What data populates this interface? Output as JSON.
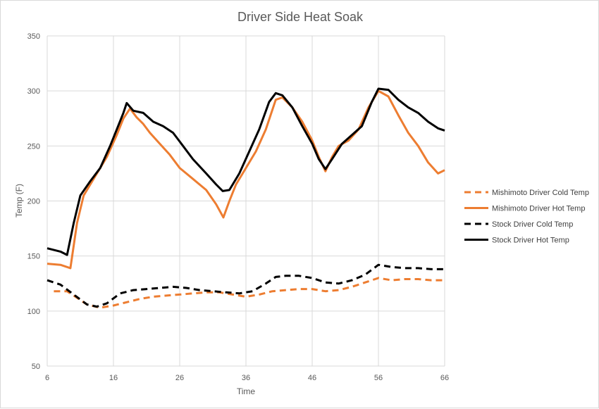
{
  "chart_data": {
    "type": "line",
    "title": "Driver Side Heat Soak",
    "xlabel": "Time",
    "ylabel": "Temp (F)",
    "xlim": [
      6,
      66
    ],
    "ylim": [
      50,
      350
    ],
    "xticks": [
      6,
      16,
      26,
      36,
      46,
      56,
      66
    ],
    "yticks": [
      50,
      100,
      150,
      200,
      250,
      300,
      350
    ],
    "grid": true,
    "legend_position": "right",
    "series": [
      {
        "name": "Mishimoto Driver Cold Temp",
        "color": "#ED7D31",
        "dash": "dashed",
        "points": [
          [
            7,
            118
          ],
          [
            9,
            118
          ],
          [
            10,
            114
          ],
          [
            12,
            106
          ],
          [
            14,
            103
          ],
          [
            16,
            105
          ],
          [
            18,
            108
          ],
          [
            20,
            111
          ],
          [
            22,
            113
          ],
          [
            24,
            114
          ],
          [
            26,
            115
          ],
          [
            28,
            116
          ],
          [
            30,
            117
          ],
          [
            32,
            117
          ],
          [
            34,
            115
          ],
          [
            36,
            113
          ],
          [
            38,
            115
          ],
          [
            40,
            118
          ],
          [
            42,
            119
          ],
          [
            44,
            120
          ],
          [
            46,
            120
          ],
          [
            48,
            118
          ],
          [
            50,
            119
          ],
          [
            52,
            122
          ],
          [
            54,
            126
          ],
          [
            56,
            130
          ],
          [
            58,
            128
          ],
          [
            60,
            129
          ],
          [
            62,
            129
          ],
          [
            64,
            128
          ],
          [
            66,
            128
          ]
        ]
      },
      {
        "name": "Mishimoto Driver Hot Temp",
        "color": "#ED7D31",
        "dash": "solid",
        "points": [
          [
            6,
            143
          ],
          [
            8,
            142
          ],
          [
            9.5,
            139
          ],
          [
            10.5,
            180
          ],
          [
            11.5,
            205
          ],
          [
            13,
            220
          ],
          [
            15,
            240
          ],
          [
            16.5,
            260
          ],
          [
            17.5,
            275
          ],
          [
            18.5,
            284
          ],
          [
            19.5,
            276
          ],
          [
            20.5,
            270
          ],
          [
            21.5,
            262
          ],
          [
            23,
            252
          ],
          [
            24.5,
            242
          ],
          [
            26,
            230
          ],
          [
            28,
            220
          ],
          [
            30,
            210
          ],
          [
            31.5,
            197
          ],
          [
            32.6,
            185
          ],
          [
            33.5,
            200
          ],
          [
            34.5,
            215
          ],
          [
            36,
            230
          ],
          [
            37.5,
            245
          ],
          [
            39,
            265
          ],
          [
            40.5,
            292
          ],
          [
            41.5,
            294
          ],
          [
            43,
            285
          ],
          [
            44.5,
            272
          ],
          [
            46,
            255
          ],
          [
            47,
            240
          ],
          [
            48,
            227
          ],
          [
            49,
            240
          ],
          [
            50,
            250
          ],
          [
            51.5,
            255
          ],
          [
            53,
            265
          ],
          [
            54.5,
            285
          ],
          [
            56,
            300
          ],
          [
            57.5,
            295
          ],
          [
            59,
            278
          ],
          [
            60.5,
            262
          ],
          [
            62,
            250
          ],
          [
            63.5,
            235
          ],
          [
            65,
            225
          ],
          [
            66,
            228
          ]
        ]
      },
      {
        "name": "Stock Driver Cold Temp",
        "color": "#000000",
        "dash": "dashed",
        "points": [
          [
            6,
            128
          ],
          [
            8,
            124
          ],
          [
            10,
            115
          ],
          [
            12,
            106
          ],
          [
            13.5,
            104
          ],
          [
            15,
            107
          ],
          [
            17,
            116
          ],
          [
            19,
            119
          ],
          [
            21,
            120
          ],
          [
            23,
            121
          ],
          [
            25,
            122
          ],
          [
            27,
            121
          ],
          [
            29,
            119
          ],
          [
            31,
            118
          ],
          [
            33,
            117
          ],
          [
            35,
            116
          ],
          [
            37,
            118
          ],
          [
            39,
            125
          ],
          [
            40.5,
            131
          ],
          [
            42,
            132
          ],
          [
            44,
            132
          ],
          [
            46,
            130
          ],
          [
            48,
            126
          ],
          [
            50,
            125
          ],
          [
            52,
            128
          ],
          [
            54,
            133
          ],
          [
            56,
            142
          ],
          [
            58,
            140
          ],
          [
            60,
            139
          ],
          [
            62,
            139
          ],
          [
            64,
            138
          ],
          [
            66,
            138
          ]
        ]
      },
      {
        "name": "Stock Driver Hot Temp",
        "color": "#000000",
        "dash": "solid",
        "points": [
          [
            6,
            157
          ],
          [
            8,
            154
          ],
          [
            9,
            151
          ],
          [
            10,
            180
          ],
          [
            11,
            205
          ],
          [
            12.5,
            218
          ],
          [
            14,
            230
          ],
          [
            15.5,
            250
          ],
          [
            16.5,
            265
          ],
          [
            17.5,
            280
          ],
          [
            18,
            289
          ],
          [
            19,
            282
          ],
          [
            20.5,
            280
          ],
          [
            22,
            272
          ],
          [
            23.5,
            268
          ],
          [
            25,
            262
          ],
          [
            26.5,
            250
          ],
          [
            28,
            238
          ],
          [
            30,
            225
          ],
          [
            31.5,
            215
          ],
          [
            32.5,
            209
          ],
          [
            33.5,
            210
          ],
          [
            35,
            225
          ],
          [
            36.5,
            245
          ],
          [
            38,
            265
          ],
          [
            39.5,
            290
          ],
          [
            40.5,
            298
          ],
          [
            41.5,
            296
          ],
          [
            43,
            285
          ],
          [
            44.5,
            268
          ],
          [
            46,
            252
          ],
          [
            47,
            238
          ],
          [
            48,
            229
          ],
          [
            49,
            238
          ],
          [
            50.5,
            252
          ],
          [
            52,
            260
          ],
          [
            53.5,
            268
          ],
          [
            55,
            290
          ],
          [
            56,
            302
          ],
          [
            57.5,
            301
          ],
          [
            59,
            292
          ],
          [
            60.5,
            285
          ],
          [
            62,
            280
          ],
          [
            63.5,
            272
          ],
          [
            65,
            266
          ],
          [
            66,
            264
          ]
        ]
      }
    ]
  }
}
